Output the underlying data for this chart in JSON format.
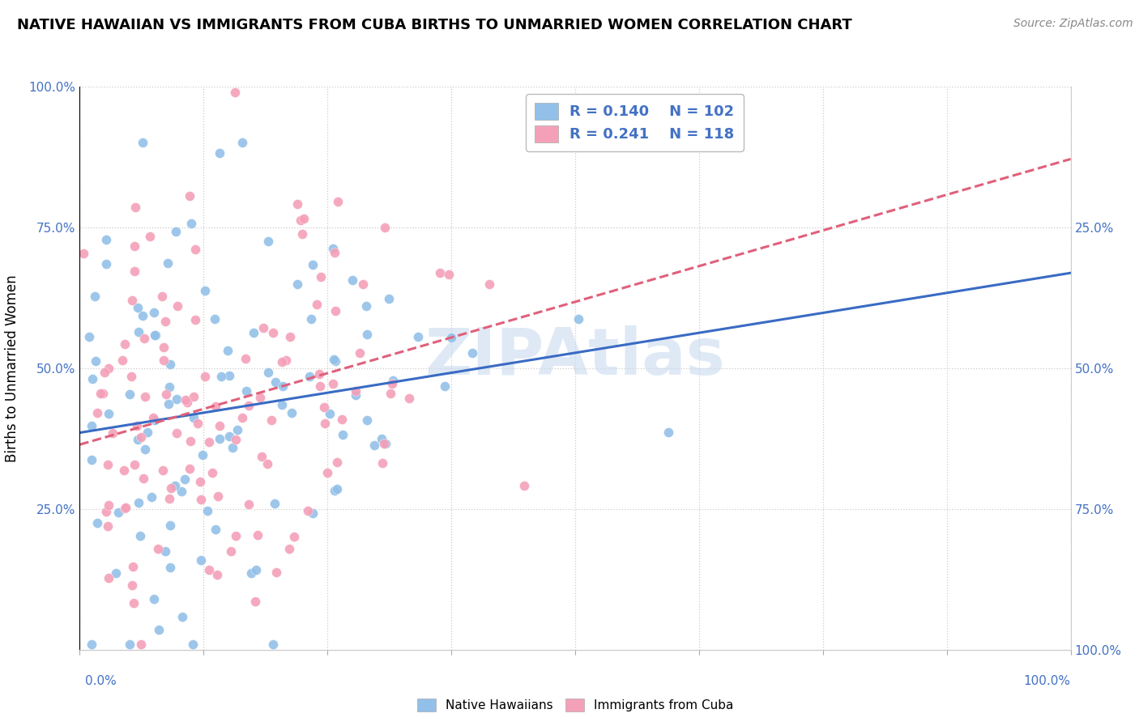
{
  "title": "NATIVE HAWAIIAN VS IMMIGRANTS FROM CUBA BIRTHS TO UNMARRIED WOMEN CORRELATION CHART",
  "source": "Source: ZipAtlas.com",
  "ylabel": "Births to Unmarried Women",
  "legend_blue_r": "R = 0.140",
  "legend_blue_n": "N = 102",
  "legend_pink_r": "R = 0.241",
  "legend_pink_n": "N = 118",
  "blue_color": "#92C0E8",
  "pink_color": "#F4A0B8",
  "trend_blue_color": "#3A6BC4",
  "trend_pink_color": "#E0607A",
  "watermark": "ZIPAtlas",
  "watermark_color": "#C5D8EE",
  "ytick_labels": [
    "",
    "25.0%",
    "50.0%",
    "75.0%",
    "100.0%"
  ],
  "right_ytick_labels": [
    "100.0%",
    "75.0%",
    "50.0%",
    "25.0%",
    ""
  ],
  "seed_blue": 7,
  "seed_pink": 13,
  "n_blue": 102,
  "n_pink": 118,
  "r_blue": 0.14,
  "r_pink": 0.241,
  "title_fontsize": 13,
  "source_fontsize": 10,
  "legend_fontsize": 13,
  "axis_label_color": "#4472C4",
  "axis_label_fontsize": 11
}
